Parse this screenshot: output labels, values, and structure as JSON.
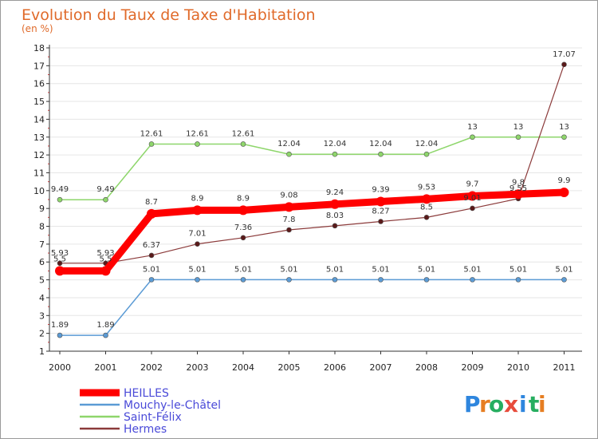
{
  "chart_data": {
    "type": "line",
    "title": "Evolution du Taux de Taxe d'Habitation",
    "subtitle": "(en %)",
    "xlabel": "",
    "ylabel": "",
    "categories": [
      "2000",
      "2001",
      "2002",
      "2003",
      "2004",
      "2005",
      "2006",
      "2007",
      "2008",
      "2009",
      "2010",
      "2011"
    ],
    "ylim": [
      1,
      18
    ],
    "yticks": [
      1,
      2,
      3,
      4,
      5,
      6,
      7,
      8,
      9,
      10,
      11,
      12,
      13,
      14,
      15,
      16,
      17,
      18
    ],
    "grid": "horizontal",
    "series": [
      {
        "name": "HEILLES",
        "color": "#ff0000",
        "values": [
          5.5,
          5.5,
          8.7,
          8.9,
          8.9,
          9.08,
          9.24,
          9.39,
          9.53,
          9.7,
          9.8,
          9.9
        ],
        "labels": [
          "5.5",
          "5.5",
          "8.7",
          "8.9",
          "8.9",
          "9.08",
          "9.24",
          "9.39",
          "9.53",
          "9.7",
          "9.8",
          "9.9"
        ]
      },
      {
        "name": "Mouchy-le-Châtel",
        "color": "#5b9bd5",
        "values": [
          1.89,
          1.89,
          5.01,
          5.01,
          5.01,
          5.01,
          5.01,
          5.01,
          5.01,
          5.01,
          5.01,
          5.01
        ],
        "labels": [
          "1.89",
          "1.89",
          "5.01",
          "5.01",
          "5.01",
          "5.01",
          "5.01",
          "5.01",
          "5.01",
          "5.01",
          "5.01",
          "5.01"
        ]
      },
      {
        "name": "Saint-Félix",
        "color": "#8ed66b",
        "values": [
          9.49,
          9.49,
          12.61,
          12.61,
          12.61,
          12.04,
          12.04,
          12.04,
          12.04,
          13,
          13,
          13
        ],
        "labels": [
          "9.49",
          "9.49",
          "12.61",
          "12.61",
          "12.61",
          "12.04",
          "12.04",
          "12.04",
          "12.04",
          "13",
          "13",
          "13"
        ]
      },
      {
        "name": "Hermes",
        "color": "#8b3a3a",
        "values": [
          5.93,
          5.93,
          6.37,
          7.01,
          7.36,
          7.8,
          8.03,
          8.27,
          8.5,
          9.01,
          9.55,
          17.07
        ],
        "labels": [
          "5.93",
          "5.93",
          "6.37",
          "7.01",
          "7.36",
          "7.8",
          "8.03",
          "8.27",
          "8.5",
          "9.01",
          "9.55",
          "17.07"
        ]
      }
    ],
    "legend": {
      "position": "bottom-left",
      "entries": [
        "HEILLES",
        "Mouchy-le-Châtel",
        "Saint-Félix",
        "Hermes"
      ]
    }
  },
  "logo": {
    "text": "Proxiti",
    "letters": [
      "P",
      "r",
      "o",
      "x",
      "i",
      "t",
      "i"
    ],
    "colors": [
      "#2e86de",
      "#e67e22",
      "#27ae60",
      "#e74c3c",
      "#2e86de",
      "#27ae60",
      "#e67e22"
    ]
  }
}
